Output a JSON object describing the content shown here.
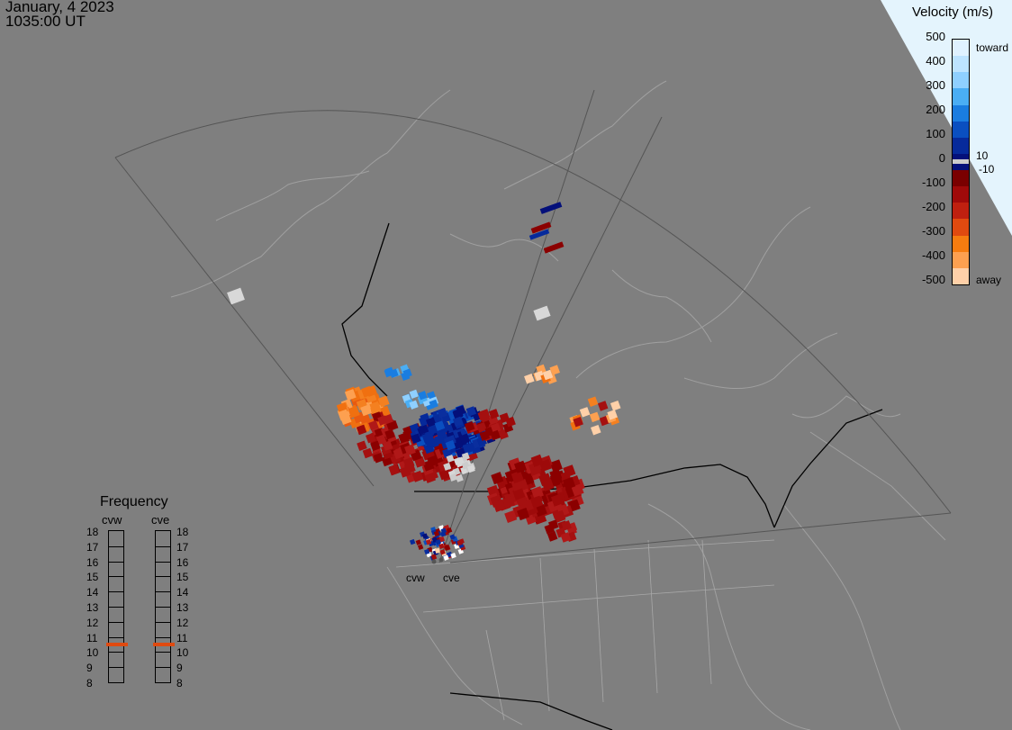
{
  "header": {
    "date": "January, 4 2023",
    "time": "1035:00 UT"
  },
  "colorbar": {
    "title": "Velocity (m/s)",
    "ticks": [
      "500",
      "400",
      "300",
      "200",
      "100",
      "0",
      "-100",
      "-200",
      "-300",
      "-400",
      "-500"
    ],
    "toward_label": "toward",
    "away_label": "away",
    "plus_threshold": "10",
    "minus_threshold": "-10",
    "colors": [
      "#dff2ff",
      "#bde4ff",
      "#8fd0ff",
      "#4aaef4",
      "#1a7de0",
      "#0a4fc0",
      "#062a9b",
      "#04107a",
      "#7a0000",
      "#a00a0a",
      "#bf2010",
      "#e04a10",
      "#f67c10",
      "#fda050",
      "#ffd0a8"
    ]
  },
  "frequency": {
    "title": "Frequency",
    "radars": [
      "cvw",
      "cve"
    ],
    "levels": [
      "18",
      "17",
      "16",
      "15",
      "14",
      "13",
      "12",
      "11",
      "10",
      "9",
      "8"
    ],
    "active": {
      "cvw": 10.5,
      "cve": 10.5
    },
    "active_color": "#e04a10"
  },
  "sites": [
    "cvw",
    "cve"
  ]
}
